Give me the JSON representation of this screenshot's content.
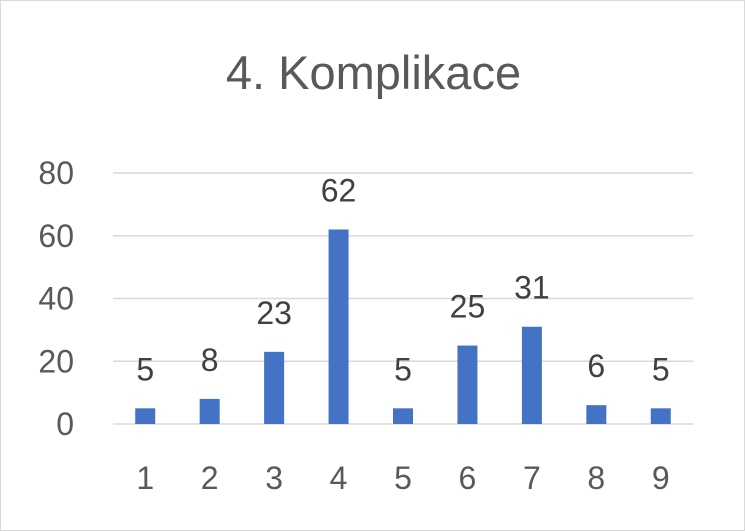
{
  "chart_data": {
    "type": "bar",
    "title": "4. Komplikace",
    "categories": [
      "1",
      "2",
      "3",
      "4",
      "5",
      "6",
      "7",
      "8",
      "9"
    ],
    "values": [
      5,
      8,
      23,
      62,
      5,
      25,
      31,
      6,
      5
    ],
    "ylim": [
      0,
      80
    ],
    "yticks": [
      0,
      20,
      40,
      60,
      80
    ],
    "grid": true,
    "data_labels": true,
    "legend": "none",
    "bar_color": "#4472c4",
    "grid_color": "#d9d9d9"
  }
}
